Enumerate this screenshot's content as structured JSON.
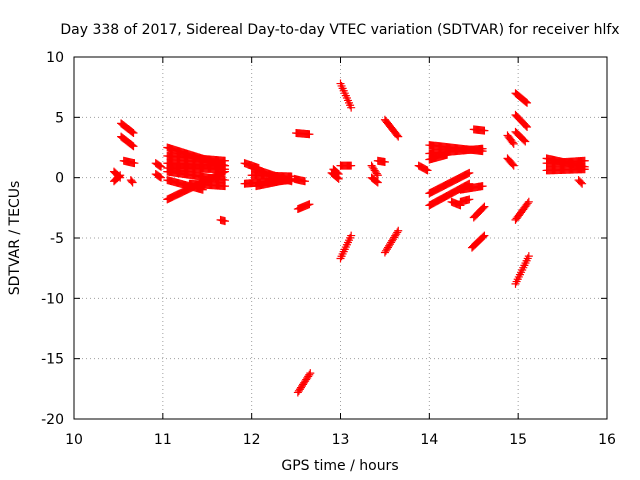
{
  "chart_data": {
    "type": "scatter",
    "title": "Day 338 of 2017, Sidereal Day-to-day VTEC variation (SDTVAR) for receiver hlfx",
    "xlabel": "GPS time / hours",
    "ylabel": "SDTVAR / TECUs",
    "xlim": [
      10,
      16
    ],
    "ylim": [
      -20,
      10
    ],
    "xticks": [
      10,
      11,
      12,
      13,
      14,
      15,
      16
    ],
    "yticks": [
      -20,
      -15,
      -10,
      -5,
      0,
      5,
      10
    ],
    "xtick_labels": [
      "10",
      "11",
      "12",
      "13",
      "14",
      "15",
      "16"
    ],
    "ytick_labels": [
      "-20",
      "-15",
      "-10",
      "-5",
      "0",
      "5",
      "10"
    ],
    "grid": true,
    "marker": "plus",
    "color": "#ff0000",
    "segments": [
      [
        10.45,
        0.5,
        10.52,
        0.0
      ],
      [
        10.45,
        -0.3,
        10.52,
        0.2
      ],
      [
        10.53,
        4.5,
        10.67,
        3.7
      ],
      [
        10.53,
        3.4,
        10.67,
        2.6
      ],
      [
        10.56,
        1.4,
        10.68,
        1.2
      ],
      [
        10.64,
        -0.2,
        10.66,
        -0.4
      ],
      [
        10.92,
        1.2,
        10.98,
        0.9
      ],
      [
        10.92,
        0.3,
        10.98,
        0.0
      ],
      [
        11.05,
        2.5,
        11.7,
        1.0
      ],
      [
        11.05,
        1.8,
        11.7,
        1.4
      ],
      [
        11.05,
        1.2,
        11.7,
        1.0
      ],
      [
        11.05,
        0.8,
        11.7,
        0.7
      ],
      [
        11.05,
        0.5,
        11.7,
        -0.2
      ],
      [
        11.05,
        -0.2,
        11.45,
        -1.0
      ],
      [
        11.05,
        -1.8,
        11.7,
        0.5
      ],
      [
        11.3,
        -0.5,
        11.7,
        -0.7
      ],
      [
        11.65,
        -3.5,
        11.7,
        -3.6
      ],
      [
        11.92,
        1.2,
        12.08,
        0.8
      ],
      [
        11.92,
        -0.5,
        12.45,
        -0.2
      ],
      [
        12.0,
        0.2,
        12.45,
        0.1
      ],
      [
        12.05,
        -0.7,
        12.45,
        -0.1
      ],
      [
        12.0,
        0.8,
        12.45,
        -0.3
      ],
      [
        12.5,
        3.7,
        12.65,
        3.6
      ],
      [
        12.52,
        -2.6,
        12.65,
        -2.2
      ],
      [
        12.52,
        -17.8,
        12.66,
        -16.2
      ],
      [
        12.48,
        -0.1,
        12.6,
        -0.3
      ],
      [
        12.9,
        0.4,
        12.98,
        -0.1
      ],
      [
        12.92,
        0.7,
        12.98,
        0.3
      ],
      [
        13.0,
        7.8,
        13.12,
        5.8
      ],
      [
        13.0,
        1.0,
        13.12,
        1.0
      ],
      [
        13.0,
        -6.7,
        13.12,
        -4.8
      ],
      [
        13.35,
        1.0,
        13.42,
        0.2
      ],
      [
        13.35,
        0.0,
        13.42,
        -0.4
      ],
      [
        13.42,
        1.4,
        13.5,
        1.3
      ],
      [
        13.5,
        4.8,
        13.65,
        3.4
      ],
      [
        13.5,
        -6.2,
        13.65,
        -4.4
      ],
      [
        13.88,
        1.0,
        13.98,
        0.6
      ],
      [
        14.0,
        2.7,
        14.6,
        2.2
      ],
      [
        14.0,
        2.0,
        14.6,
        2.4
      ],
      [
        14.0,
        1.5,
        14.2,
        1.9
      ],
      [
        14.0,
        -1.3,
        14.45,
        0.4
      ],
      [
        14.0,
        -2.3,
        14.45,
        -0.5
      ],
      [
        14.25,
        -2.0,
        14.35,
        -2.3
      ],
      [
        14.35,
        -1.0,
        14.6,
        -0.7
      ],
      [
        14.35,
        -2.0,
        14.45,
        -1.8
      ],
      [
        14.5,
        4.0,
        14.62,
        3.9
      ],
      [
        14.48,
        -5.8,
        14.62,
        -4.8
      ],
      [
        14.5,
        -3.3,
        14.62,
        -2.4
      ],
      [
        14.88,
        3.5,
        14.95,
        2.8
      ],
      [
        14.88,
        1.6,
        14.95,
        1.0
      ],
      [
        14.97,
        7.0,
        15.1,
        6.2
      ],
      [
        14.97,
        5.2,
        15.1,
        4.2
      ],
      [
        14.97,
        3.8,
        15.08,
        3.0
      ],
      [
        14.97,
        -3.5,
        15.12,
        -2.0
      ],
      [
        14.97,
        -8.8,
        15.12,
        -6.5
      ],
      [
        15.32,
        1.6,
        15.75,
        0.9
      ],
      [
        15.32,
        1.2,
        15.75,
        1.4
      ],
      [
        15.32,
        0.6,
        15.75,
        0.7
      ],
      [
        15.68,
        -0.2,
        15.72,
        -0.5
      ]
    ]
  }
}
